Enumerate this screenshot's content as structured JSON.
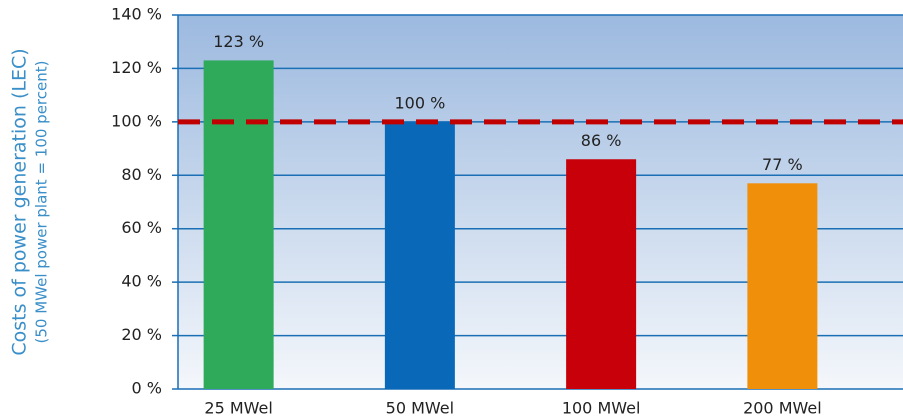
{
  "chart_data": {
    "type": "bar",
    "y_label": [
      "Costs of power generation (LEC)",
      "(50 MWel power plant = 100 percent)"
    ],
    "categories": [
      "25 MWel",
      "50 MWel",
      "100 MWel",
      "200 MWel"
    ],
    "values": [
      123,
      100,
      86,
      77
    ],
    "value_labels": [
      "123 %",
      "100 %",
      "86 %",
      "77 %"
    ],
    "colors": [
      "#2eaa5a",
      "#0a68b8",
      "#c8000a",
      "#f0900a"
    ],
    "ylim": [
      0,
      140
    ],
    "yticks": [
      {
        "value": 0,
        "label": "0 %"
      },
      {
        "value": 20,
        "label": "20 %"
      },
      {
        "value": 40,
        "label": "40 %"
      },
      {
        "value": 60,
        "label": "60 %"
      },
      {
        "value": 80,
        "label": "80 %"
      },
      {
        "value": 100,
        "label": "100 %"
      },
      {
        "value": 120,
        "label": "120 %"
      },
      {
        "value": 140,
        "label": "140 %"
      }
    ],
    "reference_line": 100,
    "grid": true
  }
}
